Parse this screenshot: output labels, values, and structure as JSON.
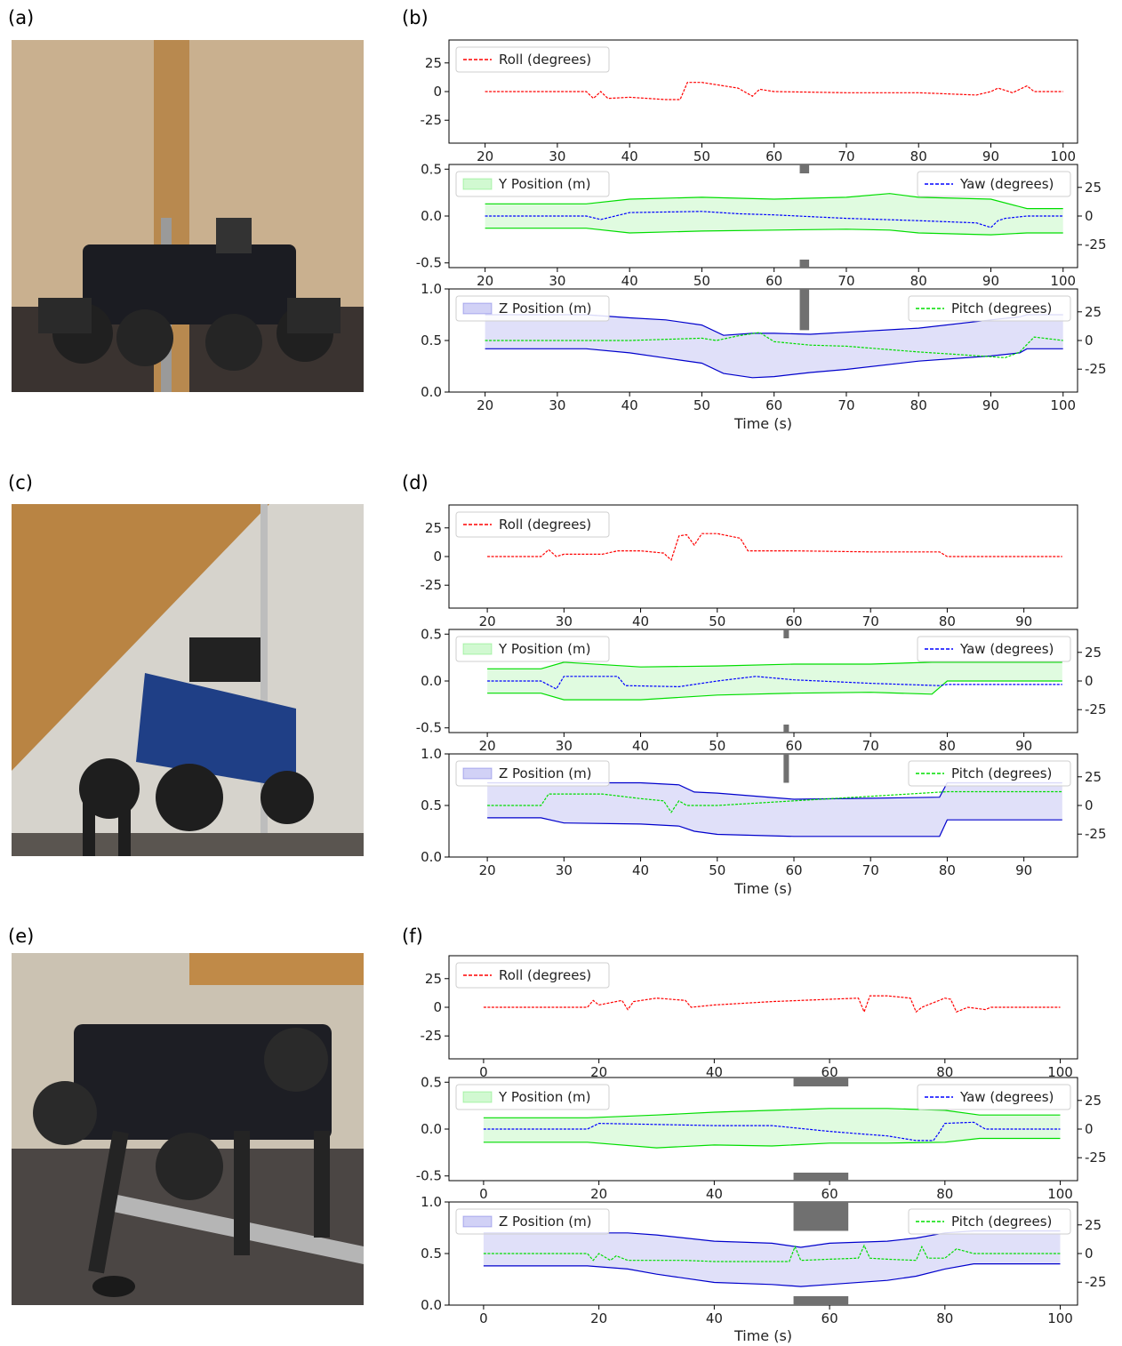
{
  "labels": {
    "a": "(a)",
    "b": "(b)",
    "c": "(c)",
    "d": "(d)",
    "e": "(e)",
    "f": "(f)"
  },
  "colors": {
    "roll": "#ff0000",
    "yaw": "#0000ff",
    "y_band": "#00dd00",
    "z_band": "#0000cc",
    "pitch": "#00dd00",
    "bar": "#707070"
  },
  "chart_data": [
    {
      "panel": "b",
      "type": "line",
      "xlabel": "Time (s)",
      "xlim": [
        15,
        102
      ],
      "xticks": [
        20,
        30,
        40,
        50,
        60,
        70,
        80,
        90,
        100
      ],
      "x_tick_under_top": true,
      "x_tick_under_mid": true,
      "x_axis_label_top": "",
      "x_axis_label_mid": "",
      "roll": {
        "legend": "Roll (degrees)",
        "ylim": [
          -45,
          45
        ],
        "yticks": [
          25,
          0,
          -25
        ],
        "x": [
          20,
          34,
          35,
          36,
          37,
          40,
          45,
          47,
          48,
          50,
          55,
          57,
          58,
          60,
          70,
          80,
          88,
          90,
          91,
          93,
          95,
          96,
          100
        ],
        "y": [
          0,
          0,
          -6,
          0,
          -6,
          -5,
          -7,
          -7,
          8,
          8,
          3,
          -4,
          2,
          0,
          -1,
          -1,
          -3,
          0,
          3,
          -1,
          5,
          0,
          0
        ]
      },
      "ypos": {
        "legend": "Y Position (m)",
        "ylim": [
          -0.55,
          0.55
        ],
        "yticks": [
          0.5,
          0.0,
          -0.5
        ],
        "x": [
          20,
          34,
          40,
          50,
          60,
          70,
          76,
          80,
          90,
          95,
          100
        ],
        "upper": [
          0.13,
          0.13,
          0.18,
          0.2,
          0.18,
          0.2,
          0.24,
          0.2,
          0.18,
          0.08,
          0.08
        ],
        "lower": [
          -0.13,
          -0.13,
          -0.18,
          -0.16,
          -0.15,
          -0.14,
          -0.15,
          -0.18,
          -0.2,
          -0.18,
          -0.18
        ]
      },
      "yaw": {
        "legend": "Yaw (degrees)",
        "ylim": [
          -45,
          45
        ],
        "yticks": [
          25,
          0,
          -25
        ],
        "x": [
          20,
          34,
          36,
          40,
          50,
          55,
          60,
          70,
          80,
          88,
          90,
          91,
          92,
          95,
          100
        ],
        "y": [
          0,
          0,
          -3,
          3,
          4,
          2,
          1,
          -2,
          -4,
          -6,
          -10,
          -4,
          -2,
          0,
          0
        ]
      },
      "zpos": {
        "legend": "Z Position (m)",
        "ylim": [
          0.0,
          1.0
        ],
        "yticks": [
          1.0,
          0.5,
          0.0
        ],
        "x": [
          20,
          34,
          40,
          45,
          50,
          53,
          57,
          60,
          65,
          70,
          80,
          90,
          94,
          95,
          100
        ],
        "upper": [
          0.75,
          0.75,
          0.72,
          0.7,
          0.65,
          0.55,
          0.57,
          0.57,
          0.56,
          0.58,
          0.62,
          0.7,
          0.73,
          0.75,
          0.75
        ],
        "lower": [
          0.42,
          0.42,
          0.38,
          0.33,
          0.28,
          0.18,
          0.14,
          0.15,
          0.19,
          0.22,
          0.3,
          0.35,
          0.38,
          0.42,
          0.42
        ]
      },
      "pitch": {
        "legend": "Pitch (degrees)",
        "ylim": [
          -45,
          45
        ],
        "yticks": [
          25,
          0,
          -25
        ],
        "x": [
          20,
          35,
          40,
          50,
          52,
          55,
          58,
          60,
          65,
          70,
          80,
          85,
          92,
          94,
          96,
          100
        ],
        "y": [
          0,
          0,
          0,
          2,
          0,
          4,
          7,
          -1,
          -4,
          -5,
          -10,
          -12,
          -15,
          -10,
          3,
          0
        ]
      },
      "bar": {
        "x_center": 64.2,
        "width": 1.3,
        "top_mini": 0.05,
        "mid_mini_top": 0.52,
        "bottom_top": 0.6
      }
    },
    {
      "panel": "d",
      "type": "line",
      "xlabel": "Time (s)",
      "xlim": [
        15,
        97
      ],
      "xticks": [
        20,
        30,
        40,
        50,
        60,
        70,
        80,
        90
      ],
      "x_tick_under_top": true,
      "x_tick_under_mid": true,
      "x_axis_label_top": "",
      "x_axis_label_mid": "",
      "roll": {
        "legend": "Roll (degrees)",
        "ylim": [
          -45,
          45
        ],
        "yticks": [
          25,
          0,
          -25
        ],
        "x": [
          20,
          27,
          28,
          29,
          30,
          35,
          37,
          40,
          43,
          44,
          45,
          46,
          47,
          48,
          50,
          53,
          54,
          60,
          70,
          79,
          80,
          95
        ],
        "y": [
          0,
          0,
          6,
          0,
          2,
          2,
          5,
          5,
          3,
          -3,
          18,
          19,
          10,
          20,
          20,
          16,
          5,
          5,
          4,
          4,
          0,
          0
        ]
      },
      "ypos": {
        "legend": "Y Position (m)",
        "ylim": [
          -0.55,
          0.55
        ],
        "yticks": [
          0.5,
          0.0,
          -0.5
        ],
        "x": [
          20,
          27,
          30,
          40,
          50,
          60,
          70,
          78,
          80,
          95
        ],
        "upper": [
          0.13,
          0.13,
          0.2,
          0.15,
          0.16,
          0.18,
          0.18,
          0.2,
          0.2,
          0.2
        ],
        "lower": [
          -0.13,
          -0.13,
          -0.2,
          -0.2,
          -0.15,
          -0.13,
          -0.12,
          -0.14,
          0.0,
          0.0
        ]
      },
      "yaw": {
        "legend": "Yaw (degrees)",
        "ylim": [
          -45,
          45
        ],
        "yticks": [
          25,
          0,
          -25
        ],
        "x": [
          20,
          27,
          29,
          30,
          37,
          38,
          45,
          50,
          55,
          60,
          70,
          79,
          80,
          95
        ],
        "y": [
          0,
          0,
          -7,
          4,
          4,
          -4,
          -5,
          0,
          4,
          1,
          -2,
          -4,
          -3,
          -3
        ]
      },
      "zpos": {
        "legend": "Z Position (m)",
        "ylim": [
          0.0,
          1.0
        ],
        "yticks": [
          1.0,
          0.5,
          0.0
        ],
        "x": [
          20,
          27,
          30,
          40,
          45,
          47,
          50,
          60,
          70,
          79,
          80,
          95
        ],
        "upper": [
          0.72,
          0.72,
          0.72,
          0.72,
          0.7,
          0.63,
          0.62,
          0.56,
          0.57,
          0.58,
          0.72,
          0.72
        ],
        "lower": [
          0.38,
          0.38,
          0.33,
          0.32,
          0.3,
          0.25,
          0.22,
          0.2,
          0.2,
          0.2,
          0.36,
          0.36
        ]
      },
      "pitch": {
        "legend": "Pitch (degrees)",
        "ylim": [
          -45,
          45
        ],
        "yticks": [
          25,
          0,
          -25
        ],
        "x": [
          20,
          27,
          28,
          35,
          40,
          43,
          44,
          45,
          46,
          50,
          60,
          70,
          80,
          95
        ],
        "y": [
          0,
          0,
          10,
          10,
          6,
          4,
          -6,
          4,
          0,
          0,
          4,
          8,
          12,
          12
        ]
      },
      "bar": {
        "x_center": 59.0,
        "width": 0.7,
        "top_mini": 0.06,
        "mid_mini_top": 0.52,
        "bottom_top": 0.72
      }
    },
    {
      "panel": "f",
      "type": "line",
      "xlabel": "Time (s)",
      "xlim": [
        -6,
        103
      ],
      "xticks": [
        0,
        20,
        40,
        60,
        80,
        100
      ],
      "x_tick_under_top": true,
      "x_tick_under_mid": true,
      "x_axis_label_top": "Time (s)",
      "x_axis_label_mid": "",
      "roll": {
        "legend": "Roll (degrees)",
        "ylim": [
          -45,
          45
        ],
        "yticks": [
          25,
          0,
          -25
        ],
        "x": [
          0,
          18,
          19,
          20,
          24,
          25,
          26,
          30,
          35,
          36,
          40,
          50,
          60,
          65,
          66,
          67,
          70,
          74,
          75,
          76,
          80,
          81,
          82,
          84,
          87,
          88,
          100
        ],
        "y": [
          0,
          0,
          6,
          2,
          6,
          -2,
          5,
          8,
          6,
          0,
          2,
          5,
          7,
          8,
          -4,
          10,
          10,
          8,
          -4,
          0,
          8,
          7,
          -4,
          0,
          -2,
          0,
          0
        ]
      },
      "ypos": {
        "legend": "Y Position (m)",
        "ylim": [
          -0.55,
          0.55
        ],
        "yticks": [
          0.5,
          0.0,
          -0.5
        ],
        "x": [
          0,
          18,
          30,
          40,
          50,
          60,
          70,
          80,
          86,
          100
        ],
        "upper": [
          0.12,
          0.12,
          0.15,
          0.18,
          0.2,
          0.22,
          0.22,
          0.2,
          0.15,
          0.15
        ],
        "lower": [
          -0.14,
          -0.14,
          -0.2,
          -0.17,
          -0.18,
          -0.15,
          -0.15,
          -0.14,
          -0.1,
          -0.1
        ]
      },
      "yaw": {
        "legend": "Yaw (degrees)",
        "ylim": [
          -45,
          45
        ],
        "yticks": [
          25,
          0,
          -25
        ],
        "x": [
          0,
          18,
          20,
          30,
          40,
          50,
          60,
          65,
          70,
          75,
          78,
          79,
          80,
          85,
          87,
          100
        ],
        "y": [
          0,
          0,
          5,
          4,
          3,
          3,
          -2,
          -4,
          -6,
          -10,
          -10,
          -3,
          5,
          6,
          0,
          0
        ]
      },
      "zpos": {
        "legend": "Z Position (m)",
        "ylim": [
          0.0,
          1.0
        ],
        "yticks": [
          1.0,
          0.5,
          0.0
        ],
        "x": [
          0,
          18,
          25,
          30,
          40,
          50,
          55,
          60,
          70,
          75,
          80,
          85,
          88,
          100
        ],
        "upper": [
          0.7,
          0.7,
          0.7,
          0.68,
          0.62,
          0.6,
          0.56,
          0.6,
          0.62,
          0.65,
          0.7,
          0.72,
          0.72,
          0.72
        ],
        "lower": [
          0.38,
          0.38,
          0.35,
          0.3,
          0.22,
          0.2,
          0.18,
          0.2,
          0.24,
          0.28,
          0.35,
          0.4,
          0.4,
          0.4
        ]
      },
      "pitch": {
        "legend": "Pitch (degrees)",
        "ylim": [
          -45,
          45
        ],
        "yticks": [
          25,
          0,
          -25
        ],
        "x": [
          0,
          18,
          19,
          20,
          22,
          23,
          25,
          35,
          40,
          50,
          53,
          54,
          55,
          60,
          65,
          66,
          67,
          70,
          75,
          76,
          77,
          80,
          82,
          85,
          88,
          100
        ],
        "y": [
          0,
          0,
          -6,
          0,
          -6,
          -2,
          -6,
          -6,
          -7,
          -7,
          -7,
          6,
          -6,
          -5,
          -4,
          7,
          -4,
          -5,
          -6,
          6,
          -4,
          -4,
          4,
          0,
          0,
          0
        ]
      },
      "bar": {
        "x_center": 58.5,
        "width": 9.5,
        "top_mini": 0.06,
        "mid_mini_top": 0.52,
        "bottom_top": 0.72
      }
    }
  ]
}
